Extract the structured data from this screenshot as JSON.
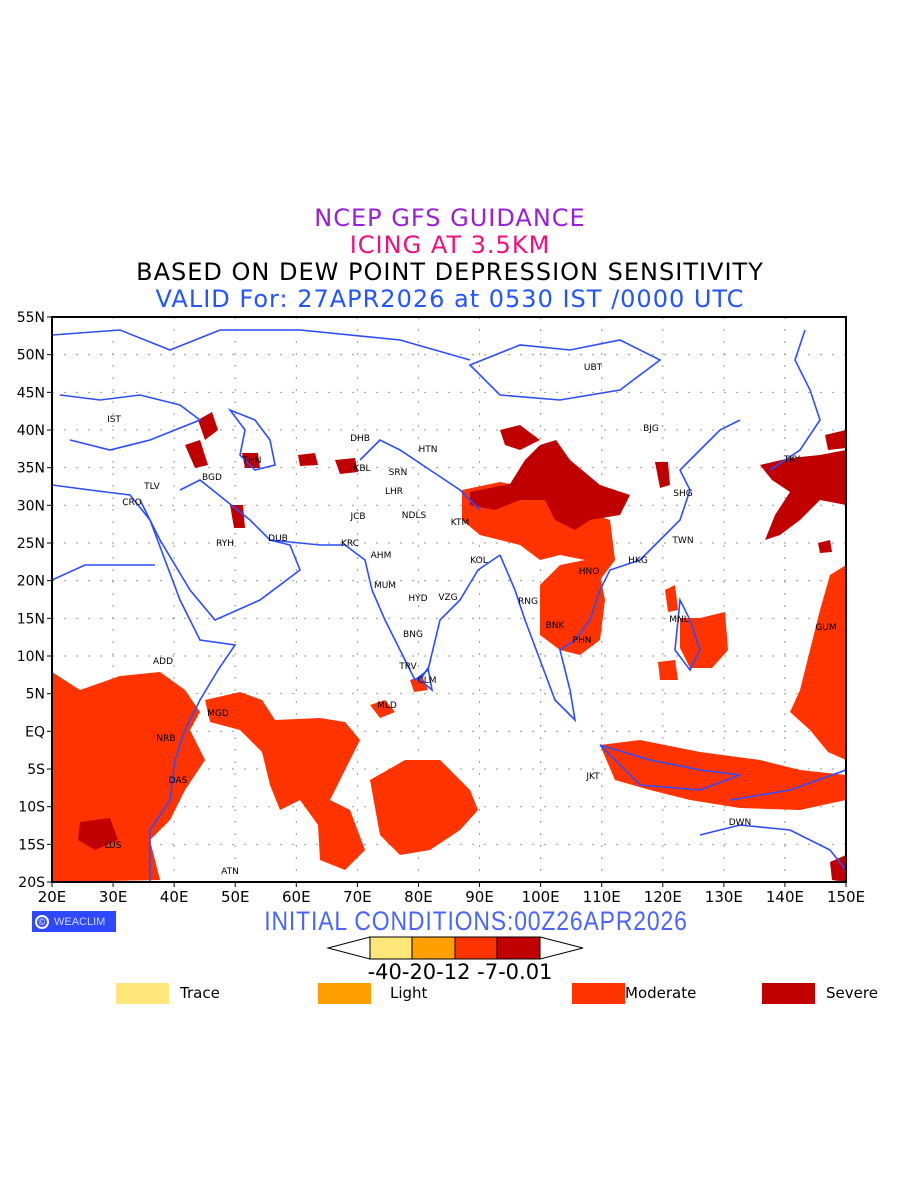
{
  "title": {
    "line1": "NCEP GFS GUIDANCE",
    "line2": "ICING AT 3.5KM",
    "line3": "BASED ON DEW POINT DEPRESSION SENSITIVITY",
    "line4": "VALID For: 27APR2026 at 0530 IST /0000 UTC"
  },
  "map": {
    "lat_labels": [
      "55N",
      "50N",
      "45N",
      "40N",
      "35N",
      "30N",
      "25N",
      "20N",
      "15N",
      "10N",
      "5N",
      "EQ",
      "5S",
      "10S",
      "15S",
      "20S"
    ],
    "lon_labels": [
      "20E",
      "30E",
      "40E",
      "50E",
      "60E",
      "70E",
      "80E",
      "90E",
      "100E",
      "110E",
      "120E",
      "130E",
      "140E",
      "150E"
    ],
    "cities": [
      "UBT",
      "BJG",
      "DHB",
      "HTN",
      "IST",
      "THN",
      "KBL",
      "SRN",
      "TLV",
      "BGD",
      "LHR",
      "CRO",
      "JCB",
      "NDLS",
      "KTM",
      "SHG",
      "RYH",
      "DUB",
      "KRC",
      "AHM",
      "TWN",
      "KOL",
      "HNO",
      "HKG",
      "MUM",
      "HYD",
      "VZG",
      "RNG",
      "BNK",
      "PHN",
      "MNL",
      "GUM",
      "BNG",
      "ADD",
      "TRV",
      "CLM",
      "TKY",
      "MLD",
      "MGD",
      "NRB",
      "DAS",
      "JKT",
      "DWN",
      "LUS",
      "ATN"
    ],
    "colors": {
      "coast": "#2d4dff",
      "trace": "#ffe67a",
      "light": "#ffa000",
      "moderate": "#ff3300",
      "severe": "#c00000"
    }
  },
  "branding": {
    "label": "WEACLIM",
    "icon": "copyright-icon"
  },
  "initial_conditions": "INITIAL CONDITIONS:00Z26APR2026",
  "colorbar": {
    "values_text": "-40-20-12 -7-0.01",
    "thresholds": [
      -40,
      -20,
      -12,
      -7,
      -0.01
    ]
  },
  "legend": [
    {
      "label": "Trace",
      "color": "#ffe67a"
    },
    {
      "label": "Light",
      "color": "#ffa000"
    },
    {
      "label": "Moderate",
      "color": "#ff3300"
    },
    {
      "label": "Severe",
      "color": "#c00000"
    }
  ]
}
